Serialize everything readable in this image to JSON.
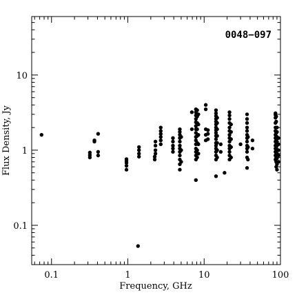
{
  "chart_data": {
    "type": "scatter",
    "title": "0048−097",
    "xlabel": "Frequency, GHz",
    "ylabel": "Flux Density, Jy",
    "xscale": "log",
    "yscale": "log",
    "xlim": [
      0.055,
      100
    ],
    "ylim": [
      0.03,
      60
    ],
    "xticks": [
      {
        "value": 0.1,
        "label": "0.1"
      },
      {
        "value": 1,
        "label": "1"
      },
      {
        "value": 10,
        "label": "10"
      },
      {
        "value": 100,
        "label": "100"
      }
    ],
    "yticks": [
      {
        "value": 0.1,
        "label": "0.1"
      },
      {
        "value": 1,
        "label": "1"
      },
      {
        "value": 10,
        "label": "10"
      }
    ],
    "marker_color": "#000000",
    "points": [
      [
        0.074,
        1.6
      ],
      [
        0.318,
        0.8
      ],
      [
        0.318,
        0.86
      ],
      [
        0.318,
        0.93
      ],
      [
        0.365,
        1.3
      ],
      [
        0.365,
        1.35
      ],
      [
        0.408,
        0.85
      ],
      [
        0.408,
        0.95
      ],
      [
        0.408,
        1.65
      ],
      [
        0.96,
        0.55
      ],
      [
        0.96,
        0.62
      ],
      [
        0.96,
        0.68
      ],
      [
        0.96,
        0.72
      ],
      [
        0.96,
        0.76
      ],
      [
        1.36,
        0.053
      ],
      [
        1.4,
        0.82
      ],
      [
        1.4,
        0.9
      ],
      [
        1.4,
        1.0
      ],
      [
        1.4,
        1.1
      ],
      [
        2.25,
        0.75
      ],
      [
        2.25,
        0.82
      ],
      [
        2.3,
        0.9
      ],
      [
        2.3,
        1.0
      ],
      [
        2.3,
        1.15
      ],
      [
        2.3,
        1.3
      ],
      [
        2.7,
        1.2
      ],
      [
        2.7,
        1.35
      ],
      [
        2.7,
        1.5
      ],
      [
        2.7,
        1.65
      ],
      [
        2.7,
        1.8
      ],
      [
        2.7,
        2.0
      ],
      [
        3.9,
        0.95
      ],
      [
        3.9,
        1.05
      ],
      [
        3.9,
        1.15
      ],
      [
        3.9,
        1.3
      ],
      [
        3.9,
        1.45
      ],
      [
        4.8,
        0.55
      ],
      [
        4.8,
        0.65
      ],
      [
        4.8,
        0.75
      ],
      [
        4.8,
        0.85
      ],
      [
        4.8,
        0.95
      ],
      [
        4.8,
        1.05
      ],
      [
        4.8,
        1.15
      ],
      [
        4.8,
        1.3
      ],
      [
        4.8,
        1.45
      ],
      [
        4.8,
        1.6
      ],
      [
        4.8,
        1.75
      ],
      [
        4.8,
        1.9
      ],
      [
        5.0,
        0.7
      ],
      [
        5.0,
        1.0
      ],
      [
        5.0,
        1.5
      ],
      [
        6.9,
        1.9
      ],
      [
        6.9,
        3.2
      ],
      [
        7.8,
        0.4
      ],
      [
        7.8,
        0.75
      ],
      [
        7.8,
        0.85
      ],
      [
        7.8,
        0.95
      ],
      [
        7.8,
        1.05
      ],
      [
        7.8,
        1.2
      ],
      [
        7.8,
        1.35
      ],
      [
        7.8,
        1.5
      ],
      [
        7.8,
        1.7
      ],
      [
        7.8,
        1.9
      ],
      [
        7.8,
        2.1
      ],
      [
        7.8,
        2.35
      ],
      [
        7.8,
        2.6
      ],
      [
        7.8,
        2.9
      ],
      [
        7.8,
        3.2
      ],
      [
        7.8,
        3.5
      ],
      [
        8.1,
        0.8
      ],
      [
        8.1,
        1.0
      ],
      [
        8.1,
        1.25
      ],
      [
        8.1,
        1.55
      ],
      [
        8.1,
        1.9
      ],
      [
        8.1,
        2.3
      ],
      [
        8.1,
        2.8
      ],
      [
        8.1,
        3.4
      ],
      [
        8.4,
        0.9
      ],
      [
        8.4,
        1.2
      ],
      [
        8.4,
        1.6
      ],
      [
        8.4,
        2.2
      ],
      [
        8.4,
        3.0
      ],
      [
        10.5,
        1.35
      ],
      [
        10.5,
        1.6
      ],
      [
        10.5,
        1.9
      ],
      [
        10.5,
        3.5
      ],
      [
        10.5,
        4.0
      ],
      [
        11.2,
        1.4
      ],
      [
        11.2,
        1.65
      ],
      [
        11.2,
        1.85
      ],
      [
        14.3,
        0.45
      ],
      [
        14.3,
        0.75
      ],
      [
        14.3,
        0.85
      ],
      [
        14.3,
        0.95
      ],
      [
        14.3,
        1.05
      ],
      [
        14.3,
        1.15
      ],
      [
        14.3,
        1.25
      ],
      [
        14.3,
        1.4
      ],
      [
        14.3,
        1.55
      ],
      [
        14.3,
        1.7
      ],
      [
        14.3,
        1.85
      ],
      [
        14.3,
        2.0
      ],
      [
        14.3,
        2.2
      ],
      [
        14.3,
        2.4
      ],
      [
        14.3,
        2.6
      ],
      [
        14.3,
        2.85
      ],
      [
        14.3,
        3.1
      ],
      [
        14.3,
        3.4
      ],
      [
        14.8,
        0.8
      ],
      [
        14.8,
        1.0
      ],
      [
        14.8,
        1.25
      ],
      [
        14.8,
        1.55
      ],
      [
        14.8,
        1.9
      ],
      [
        14.8,
        2.3
      ],
      [
        14.8,
        2.7
      ],
      [
        16.5,
        0.95
      ],
      [
        16.5,
        1.2
      ],
      [
        18.5,
        0.5
      ],
      [
        21.5,
        0.75
      ],
      [
        21.5,
        0.85
      ],
      [
        21.5,
        0.95
      ],
      [
        21.5,
        1.05
      ],
      [
        21.5,
        1.15
      ],
      [
        21.5,
        1.3
      ],
      [
        21.5,
        1.45
      ],
      [
        21.5,
        1.6
      ],
      [
        21.5,
        1.8
      ],
      [
        21.5,
        2.0
      ],
      [
        21.5,
        2.3
      ],
      [
        21.5,
        2.6
      ],
      [
        21.5,
        2.9
      ],
      [
        21.5,
        3.2
      ],
      [
        22.5,
        0.8
      ],
      [
        22.5,
        1.1
      ],
      [
        22.5,
        1.4
      ],
      [
        22.5,
        1.75
      ],
      [
        22.5,
        2.2
      ],
      [
        30,
        1.2
      ],
      [
        36.5,
        0.58
      ],
      [
        36.5,
        0.8
      ],
      [
        36.5,
        0.95
      ],
      [
        36.5,
        1.05
      ],
      [
        36.5,
        1.15
      ],
      [
        36.5,
        1.3
      ],
      [
        36.5,
        1.45
      ],
      [
        36.5,
        1.6
      ],
      [
        36.5,
        1.8
      ],
      [
        36.5,
        2.0
      ],
      [
        36.5,
        2.3
      ],
      [
        36.5,
        2.6
      ],
      [
        36.5,
        3.0
      ],
      [
        37.5,
        0.75
      ],
      [
        37.5,
        1.1
      ],
      [
        37.5,
        1.5
      ],
      [
        43,
        1.05
      ],
      [
        43,
        1.35
      ],
      [
        86,
        0.75
      ],
      [
        86,
        0.85
      ],
      [
        86,
        0.95
      ],
      [
        86,
        1.05
      ],
      [
        86,
        1.15
      ],
      [
        86,
        1.3
      ],
      [
        86,
        1.45
      ],
      [
        86,
        1.6
      ],
      [
        86,
        1.8
      ],
      [
        86,
        2.0
      ],
      [
        86,
        2.3
      ],
      [
        86,
        2.7
      ],
      [
        86,
        2.95
      ],
      [
        86,
        3.1
      ],
      [
        88,
        0.6
      ],
      [
        88,
        0.7
      ],
      [
        88,
        0.8
      ],
      [
        88,
        0.9
      ],
      [
        88,
        1.0
      ],
      [
        88,
        1.1
      ],
      [
        88,
        1.2
      ],
      [
        88,
        1.35
      ],
      [
        88,
        1.5
      ],
      [
        88,
        1.7
      ],
      [
        88,
        2.0
      ],
      [
        88,
        2.4
      ],
      [
        88,
        2.8
      ],
      [
        90,
        0.55
      ],
      [
        90,
        0.65
      ],
      [
        90,
        0.78
      ],
      [
        90,
        0.9
      ],
      [
        90,
        1.02
      ],
      [
        90,
        1.15
      ],
      [
        90,
        1.3
      ],
      [
        90,
        1.5
      ],
      [
        90,
        1.75
      ],
      [
        90,
        2.0
      ],
      [
        94,
        0.7
      ],
      [
        94,
        0.85
      ],
      [
        94,
        1.0
      ],
      [
        94,
        1.2
      ],
      [
        94,
        1.45
      ]
    ]
  }
}
